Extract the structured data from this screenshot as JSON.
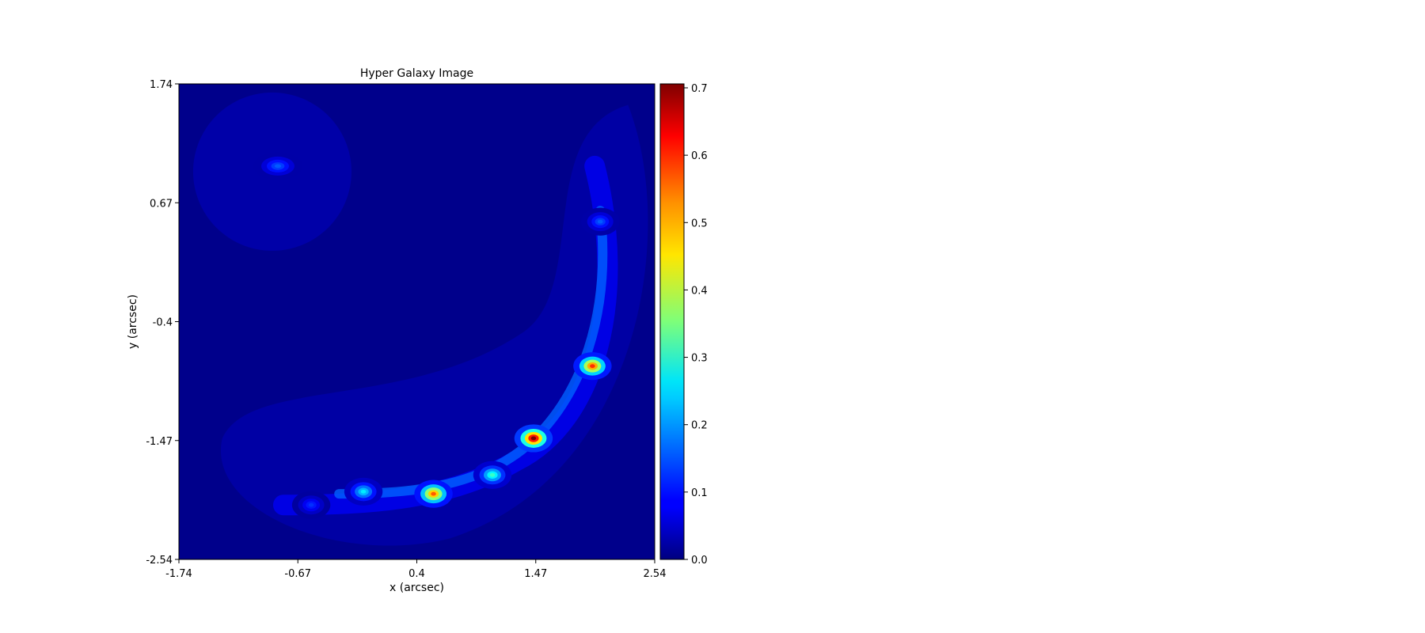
{
  "chart_data": {
    "type": "heatmap",
    "title": "Hyper Galaxy Image",
    "xlabel": "x (arcsec)",
    "ylabel": "y (arcsec)",
    "xlim": [
      -1.74,
      2.54
    ],
    "ylim": [
      -2.54,
      1.74
    ],
    "x_ticks": [
      -1.74,
      -0.67,
      0.4,
      1.47,
      2.54
    ],
    "x_tick_labels": [
      "-1.74",
      "-0.67",
      "0.4",
      "1.47",
      "2.54"
    ],
    "y_ticks": [
      1.74,
      0.67,
      -0.4,
      -1.47,
      -2.54
    ],
    "y_tick_labels": [
      "1.74",
      "0.67",
      "-0.4",
      "-1.47",
      "-2.54"
    ],
    "colormap": "jet",
    "colorbar": {
      "range": [
        0.0,
        0.7
      ],
      "ticks": [
        0.0,
        0.1,
        0.2,
        0.3,
        0.4,
        0.5,
        0.6,
        0.7
      ],
      "tick_labels": [
        "0.0",
        "0.1",
        "0.2",
        "0.3",
        "0.4",
        "0.5",
        "0.6",
        "0.7"
      ]
    },
    "grid": false,
    "features": [
      {
        "name": "arc-knot",
        "x": 2.05,
        "y": 0.5,
        "value": 0.15
      },
      {
        "name": "arc-knot",
        "x": 1.98,
        "y": -0.8,
        "value": 0.58
      },
      {
        "name": "arc-knot",
        "x": 1.45,
        "y": -1.45,
        "value": 0.7
      },
      {
        "name": "arc-knot",
        "x": 1.08,
        "y": -1.78,
        "value": 0.3
      },
      {
        "name": "arc-knot",
        "x": 0.55,
        "y": -1.95,
        "value": 0.55
      },
      {
        "name": "arc-knot",
        "x": -0.08,
        "y": -1.93,
        "value": 0.25
      },
      {
        "name": "arc-knot",
        "x": -0.55,
        "y": -2.05,
        "value": 0.12
      },
      {
        "name": "counter-image",
        "x": -0.85,
        "y": 1.0,
        "value": 0.15
      }
    ]
  }
}
